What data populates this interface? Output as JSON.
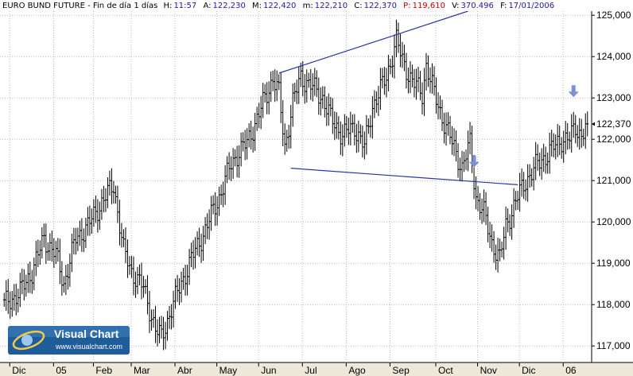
{
  "header": {
    "instrument": "EURO BUND FUTURE",
    "sep1": " - ",
    "period": "Fin de día 1 días",
    "h_label": "H:",
    "h_value": "11:57",
    "a_label": "A:",
    "a_value": "122,230",
    "m_label": "M:",
    "m_value": "122,420",
    "min_label": "m:",
    "min_value": "122,210",
    "c_label": "C:",
    "c_value": "122,370",
    "p_label": "P:",
    "p_value": "119,610",
    "v_label": "V:",
    "v_value": "370.496",
    "f_label": "F:",
    "f_value": "17/01/2006"
  },
  "logo": {
    "title": "Visual Chart",
    "url": "www.visualchart.com"
  },
  "colors": {
    "background": "#ffffff",
    "bars": "#000000",
    "trendlines": "#2a35a8",
    "arrows": "#7d8fd6",
    "header_blue": "#1a1aa0",
    "header_red": "#c00000",
    "axis_panel": "#ece9d8",
    "logo_bg": "#1f5d9a"
  },
  "chart_data": {
    "type": "ohlc",
    "ylim": [
      116.6,
      125.1
    ],
    "yticks": [
      "117,000",
      "118,000",
      "119,000",
      "120,000",
      "121,000",
      "122,000",
      "123,000",
      "124,000",
      "125,000"
    ],
    "ytick_values": [
      117,
      118,
      119,
      120,
      121,
      122,
      123,
      124,
      125
    ],
    "last_price": 122.37,
    "last_price_label": "122,370",
    "xticks": [
      "Dic",
      "05",
      "Feb",
      "Mar",
      "Abr",
      "May",
      "Jun",
      "Jul",
      "Ago",
      "Sep",
      "Oct",
      "Nov",
      "Dic",
      "06"
    ],
    "xtick_index": [
      6,
      28,
      48,
      67,
      89,
      110,
      131,
      153,
      175,
      197,
      220,
      241,
      262,
      284
    ],
    "n_bars": 294,
    "anchors": [
      [
        0,
        118.0
      ],
      [
        8,
        118.3
      ],
      [
        14,
        118.8
      ],
      [
        20,
        119.6
      ],
      [
        26,
        119.2
      ],
      [
        30,
        118.5
      ],
      [
        36,
        119.6
      ],
      [
        42,
        119.9
      ],
      [
        48,
        120.4
      ],
      [
        55,
        120.9
      ],
      [
        60,
        119.3
      ],
      [
        64,
        118.8
      ],
      [
        70,
        118.4
      ],
      [
        76,
        117.4
      ],
      [
        79,
        117.2
      ],
      [
        84,
        117.9
      ],
      [
        88,
        118.4
      ],
      [
        94,
        119.1
      ],
      [
        100,
        119.7
      ],
      [
        108,
        120.6
      ],
      [
        114,
        121.4
      ],
      [
        118,
        121.7
      ],
      [
        122,
        121.9
      ],
      [
        127,
        122.5
      ],
      [
        132,
        123.1
      ],
      [
        135,
        123.5
      ],
      [
        138,
        123.1
      ],
      [
        141,
        121.8
      ],
      [
        145,
        122.9
      ],
      [
        149,
        123.5
      ],
      [
        154,
        123.3
      ],
      [
        160,
        123.0
      ],
      [
        164,
        122.5
      ],
      [
        170,
        122.1
      ],
      [
        176,
        122.3
      ],
      [
        181,
        121.8
      ],
      [
        185,
        122.8
      ],
      [
        192,
        123.5
      ],
      [
        197,
        124.4
      ],
      [
        200,
        123.9
      ],
      [
        205,
        123.4
      ],
      [
        210,
        123.1
      ],
      [
        212,
        123.8
      ],
      [
        216,
        123.1
      ],
      [
        221,
        122.4
      ],
      [
        226,
        121.8
      ],
      [
        230,
        121.3
      ],
      [
        234,
        121.9
      ],
      [
        237,
        120.6
      ],
      [
        241,
        120.2
      ],
      [
        245,
        119.5
      ],
      [
        249,
        119.1
      ],
      [
        252,
        119.9
      ],
      [
        257,
        120.5
      ],
      [
        262,
        121.0
      ],
      [
        268,
        121.4
      ],
      [
        274,
        121.7
      ],
      [
        280,
        122.0
      ],
      [
        284,
        122.0
      ],
      [
        287,
        122.3
      ],
      [
        290,
        122.1
      ],
      [
        293,
        122.37
      ]
    ],
    "annotations": {
      "trendline_upper": [
        [
          138,
          123.6
        ],
        [
          233,
          125.1
        ]
      ],
      "trendline_lower": [
        [
          144,
          121.3
        ],
        [
          258,
          120.9
        ]
      ],
      "down_arrows": [
        [
          236,
          121.3
        ],
        [
          286,
          123.0
        ]
      ]
    }
  }
}
